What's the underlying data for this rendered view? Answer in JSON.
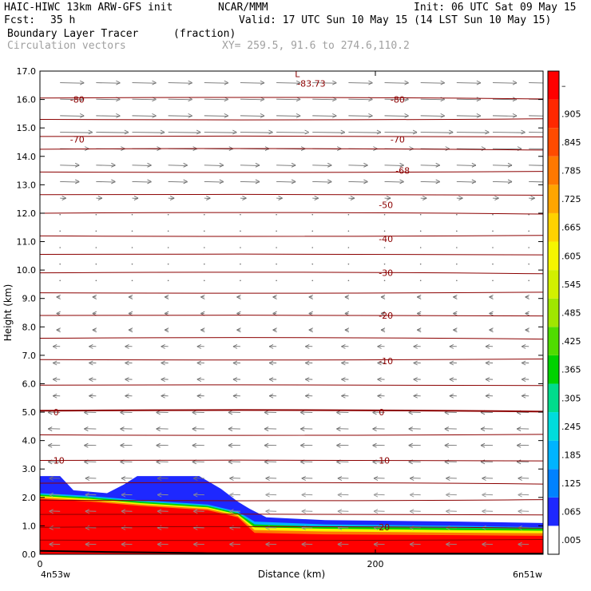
{
  "header": {
    "model": "HAIC-HIWC 13km ARW-GFS init",
    "org": "NCAR/MMM",
    "init": "Init: 06 UTC Sat 09 May 15",
    "fcst_label": "Fcst:",
    "fcst_value": "35 h",
    "valid": "Valid: 17 UTC Sun 10 May 15 (14 LST Sun 10 May 15)",
    "field": "Boundary Layer Tracer",
    "units": "(fraction)",
    "vectors": "Circulation vectors",
    "xy": "XY= 259.5, 91.6 to 274.6,110.2"
  },
  "chart_data": {
    "type": "heatmap",
    "ylabel": "Height (km)",
    "xlabel": "Distance (km)",
    "ylim": [
      0,
      17
    ],
    "xlim": [
      0,
      300
    ],
    "y_ticks": [
      "0.0",
      "1.0",
      "2.0",
      "3.0",
      "4.0",
      "5.0",
      "6.0",
      "7.0",
      "8.0",
      "9.0",
      "10.0",
      "11.0",
      "12.0",
      "13.0",
      "14.0",
      "15.0",
      "16.0",
      "17.0"
    ],
    "x_ticks": [
      {
        "value": 0,
        "label": "0"
      },
      {
        "value": 200,
        "label": "200"
      }
    ],
    "x_endpoints": {
      "left": "4n53w",
      "right": "6n51w"
    },
    "colorbar": {
      "labels": [
        ".005",
        ".065",
        ".125",
        ".185",
        ".245",
        ".305",
        ".365",
        ".425",
        ".485",
        ".545",
        ".605",
        ".665",
        ".725",
        ".785",
        ".845",
        ".905",
        "–"
      ],
      "colors": [
        "#ffffff",
        "#1e28ff",
        "#0082ff",
        "#00b4ff",
        "#00dcdc",
        "#00dc8c",
        "#00d200",
        "#50dc00",
        "#a0e600",
        "#d2f000",
        "#f5f500",
        "#ffd200",
        "#ffa500",
        "#ff7800",
        "#ff4b00",
        "#ff2800",
        "#ff0000"
      ]
    },
    "temperature_contours": {
      "units": "°C",
      "labels": [
        {
          "text": "-80",
          "x": 18,
          "y": 16.0
        },
        {
          "text": "-80",
          "x": 209,
          "y": 16.0
        },
        {
          "text": "-70",
          "x": 18,
          "y": 14.6
        },
        {
          "text": "-70",
          "x": 209,
          "y": 14.6
        },
        {
          "text": "-68",
          "x": 212,
          "y": 13.5
        },
        {
          "text": "-50",
          "x": 202,
          "y": 12.3
        },
        {
          "text": "-40",
          "x": 202,
          "y": 11.1
        },
        {
          "text": "-30",
          "x": 202,
          "y": 9.9
        },
        {
          "text": "-20",
          "x": 202,
          "y": 8.4
        },
        {
          "text": "-10",
          "x": 202,
          "y": 6.8
        },
        {
          "text": "0",
          "x": 8,
          "y": 5.0
        },
        {
          "text": "0",
          "x": 202,
          "y": 5.0
        },
        {
          "text": "10",
          "x": 8,
          "y": 3.3
        },
        {
          "text": "10",
          "x": 202,
          "y": 3.3
        },
        {
          "text": "20",
          "x": 202,
          "y": 0.95
        }
      ],
      "min_label": {
        "text": "L",
        "value": "-83.73",
        "x": 152,
        "y": 16.9
      }
    }
  }
}
